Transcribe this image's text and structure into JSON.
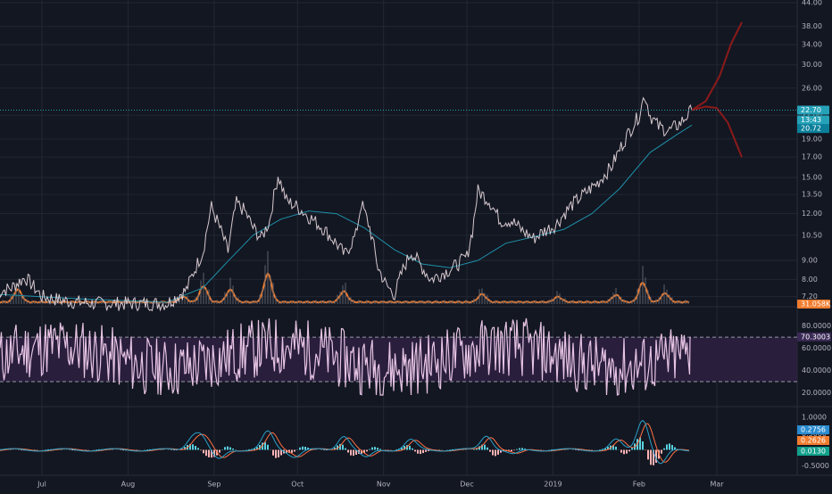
{
  "chart_data": {
    "type": "line",
    "title": "",
    "colors": {
      "background": "#131722",
      "grid": "#232733",
      "axis_text": "#b2b5be",
      "price_line": "#d7c9cf",
      "ema_line": "#1e8fa8",
      "volume_line": "#f07c2e",
      "rsi_line": "#e7c4e4",
      "rsi_band": "#2a1e3d",
      "macd_line": "#2aa2c9",
      "signal_line": "#ff7043",
      "histogram_up": "#5ad2e0",
      "histogram_down": "#ffb4b4",
      "projection": "#8b1a1a",
      "badge_price": "#26a2b8",
      "badge_time": "#26a2b8",
      "badge_ema": "#0b7f9a",
      "badge_volume": "#f07c2e",
      "badge_rsi": "#3a2a55",
      "badge_macd": "#2a8bd0",
      "badge_signal": "#f07c2e",
      "badge_hist": "#12a08b"
    },
    "x_axis": {
      "ticks": [
        "Jul",
        "Aug",
        "Sep",
        "Oct",
        "Nov",
        "Dec",
        "2019",
        "Feb",
        "Mar"
      ]
    },
    "price_panel": {
      "scale": "log",
      "ylim": [
        6.8,
        44.0
      ],
      "y_ticks": [
        "44.00",
        "38.00",
        "34.00",
        "30.00",
        "26.00",
        "22.00",
        "19.00",
        "17.00",
        "15.00",
        "13.50",
        "12.00",
        "10.50",
        "9.00",
        "8.00",
        "7.20"
      ],
      "last_price": "22.70",
      "countdown": "13:43",
      "ema_value": "20.72",
      "volume_value": "31.058K",
      "price_series": [
        [
          "Jun 15",
          7.4
        ],
        [
          "Jun 20",
          7.6
        ],
        [
          "Jun 25",
          8.1
        ],
        [
          "Jul 1",
          7.2
        ],
        [
          "Jul 10",
          7.0
        ],
        [
          "Jul 20",
          6.9
        ],
        [
          "Aug 1",
          6.9
        ],
        [
          "Aug 15",
          6.9
        ],
        [
          "Aug 22",
          7.5
        ],
        [
          "Aug 25",
          8.5
        ],
        [
          "Aug 28",
          9.5
        ],
        [
          "Aug 31",
          12.5
        ],
        [
          "Sep 3",
          11.0
        ],
        [
          "Sep 6",
          9.5
        ],
        [
          "Sep 9",
          12.8
        ],
        [
          "Sep 12",
          12.2
        ],
        [
          "Sep 15",
          11.0
        ],
        [
          "Sep 18",
          10.3
        ],
        [
          "Sep 21",
          11.5
        ],
        [
          "Sep 24",
          15.2
        ],
        [
          "Sep 27",
          13.0
        ],
        [
          "Oct 1",
          12.5
        ],
        [
          "Oct 5",
          11.8
        ],
        [
          "Oct 10",
          11.0
        ],
        [
          "Oct 15",
          10.0
        ],
        [
          "Oct 18",
          9.3
        ],
        [
          "Oct 22",
          10.5
        ],
        [
          "Oct 24",
          12.8
        ],
        [
          "Oct 27",
          11.0
        ],
        [
          "Oct 30",
          8.6
        ],
        [
          "Nov 2",
          7.7
        ],
        [
          "Nov 5",
          7.3
        ],
        [
          "Nov 8",
          8.5
        ],
        [
          "Nov 11",
          9.5
        ],
        [
          "Nov 14",
          8.8
        ],
        [
          "Nov 18",
          8.0
        ],
        [
          "Nov 22",
          8.3
        ],
        [
          "Nov 26",
          8.6
        ],
        [
          "Dec 1",
          9.2
        ],
        [
          "Dec 3",
          10.8
        ],
        [
          "Dec 5",
          13.8
        ],
        [
          "Dec 9",
          13.0
        ],
        [
          "Dec 13",
          11.5
        ],
        [
          "Dec 17",
          11.5
        ],
        [
          "Dec 21",
          10.8
        ],
        [
          "Dec 25",
          10.3
        ],
        [
          "Dec 29",
          10.8
        ],
        [
          "Jan 2",
          11.2
        ],
        [
          "Jan 7",
          12.5
        ],
        [
          "Jan 12",
          13.5
        ],
        [
          "Jan 17",
          14.5
        ],
        [
          "Jan 22",
          16.0
        ],
        [
          "Jan 27",
          19.0
        ],
        [
          "Feb 1",
          22.0
        ],
        [
          "Feb 3",
          25.0
        ],
        [
          "Feb 5",
          22.0
        ],
        [
          "Feb 8",
          20.5
        ],
        [
          "Feb 12",
          20.0
        ],
        [
          "Feb 16",
          21.0
        ],
        [
          "Feb 20",
          22.7
        ]
      ],
      "ema_series": [
        [
          "Jun 15",
          7.3
        ],
        [
          "Jul 15",
          7.1
        ],
        [
          "Aug 15",
          6.95
        ],
        [
          "Aug 28",
          7.6
        ],
        [
          "Sep 5",
          8.8
        ],
        [
          "Sep 15",
          10.5
        ],
        [
          "Sep 25",
          11.6
        ],
        [
          "Oct 5",
          12.2
        ],
        [
          "Oct 15",
          12.0
        ],
        [
          "Oct 25",
          11.0
        ],
        [
          "Nov 5",
          9.6
        ],
        [
          "Nov 15",
          8.8
        ],
        [
          "Nov 25",
          8.6
        ],
        [
          "Dec 5",
          9.0
        ],
        [
          "Dec 15",
          10.0
        ],
        [
          "Dec 25",
          10.4
        ],
        [
          "Jan 5",
          10.9
        ],
        [
          "Jan 15",
          12.0
        ],
        [
          "Jan 25",
          14.0
        ],
        [
          "Feb 5",
          17.5
        ],
        [
          "Feb 15",
          19.6
        ],
        [
          "Feb 20",
          20.7
        ]
      ],
      "projection_up": [
        [
          "Feb 20",
          22.7
        ],
        [
          "Feb 25",
          24.0
        ],
        [
          "Mar 2",
          28.0
        ],
        [
          "Mar 6",
          34.0
        ],
        [
          "Mar 10",
          39.0
        ]
      ],
      "projection_down": [
        [
          "Feb 20",
          22.7
        ],
        [
          "Feb 25",
          23.2
        ],
        [
          "Mar 1",
          23.0
        ],
        [
          "Mar 5",
          21.0
        ],
        [
          "Mar 10",
          17.0
        ]
      ]
    },
    "rsi_panel": {
      "ylim": [
        10,
        95
      ],
      "y_ticks": [
        "80.0000",
        "60.0000",
        "40.0000",
        "20.0000"
      ],
      "band": [
        30,
        70
      ],
      "current": "70.3003"
    },
    "macd_panel": {
      "ylim": [
        -0.7,
        1.25
      ],
      "y_ticks": [
        "1.0000",
        "0.5000",
        "-0.5000"
      ],
      "macd_value": "0.2756",
      "signal_value": "0.2626",
      "hist_value": "0.0130"
    }
  }
}
